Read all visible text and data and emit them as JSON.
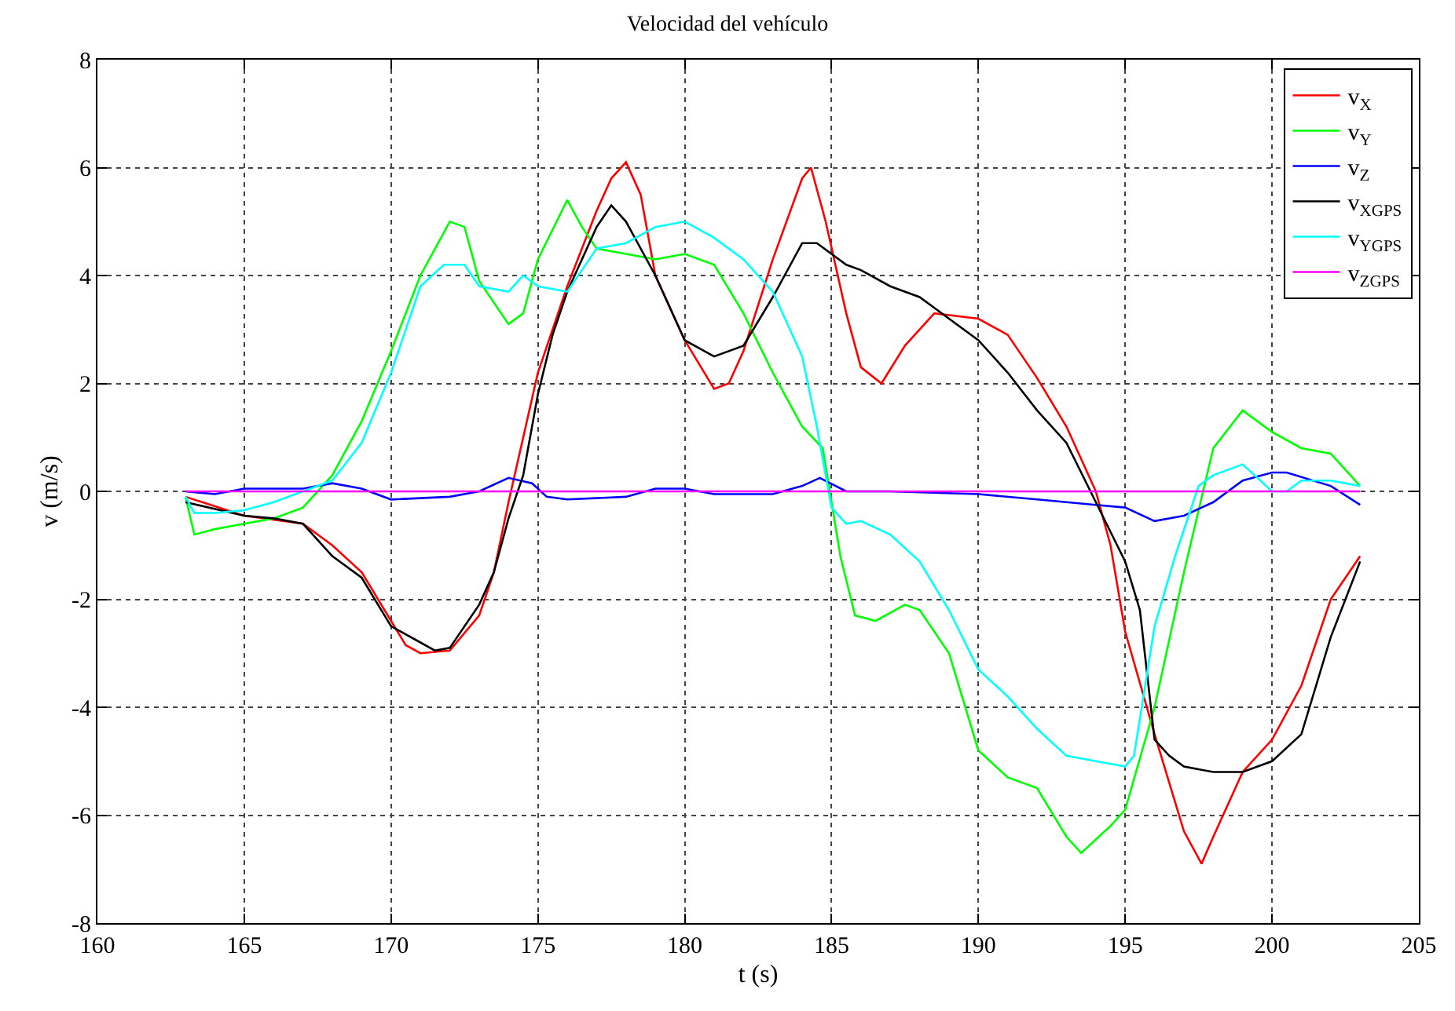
{
  "chart_data": {
    "type": "line",
    "title": "Velocidad del vehículo",
    "xlabel": "t (s)",
    "ylabel": "v (m/s)",
    "xlim": [
      160,
      205
    ],
    "xticks": [
      160,
      165,
      170,
      175,
      180,
      185,
      190,
      195,
      200,
      205
    ],
    "ylim": [
      -8,
      8
    ],
    "yticks": [
      -8,
      -6,
      -4,
      -2,
      0,
      2,
      4,
      6,
      8
    ],
    "grid": true,
    "legend": "top right",
    "line_style": "solid",
    "marker": "none",
    "series": [
      {
        "name": "v$_{X}$",
        "color": "#ff0000",
        "x": [
          163,
          165,
          167,
          168,
          169,
          170,
          170.5,
          171,
          172,
          173,
          173.5,
          174,
          174.5,
          175,
          176,
          177,
          177.5,
          178,
          178.5,
          179,
          180,
          181,
          181.5,
          182,
          183,
          184,
          184.3,
          184.8,
          185.5,
          186,
          186.7,
          187.5,
          188.5,
          190,
          191,
          192,
          193,
          194,
          194.5,
          195,
          196,
          197,
          197.6,
          198,
          199,
          200,
          201,
          202,
          203
        ],
        "values": [
          -0.1,
          -0.45,
          -0.6,
          -1.0,
          -1.5,
          -2.4,
          -2.85,
          -3.0,
          -2.95,
          -2.3,
          -1.5,
          -0.2,
          1.0,
          2.2,
          3.8,
          5.2,
          5.8,
          6.1,
          5.5,
          4.0,
          2.8,
          1.9,
          2.0,
          2.6,
          4.3,
          5.8,
          6.0,
          5.0,
          3.3,
          2.3,
          2.0,
          2.7,
          3.3,
          3.2,
          2.9,
          2.1,
          1.2,
          0.0,
          -1.0,
          -2.6,
          -4.5,
          -6.3,
          -6.9,
          -6.4,
          -5.2,
          -4.6,
          -3.6,
          -2.0,
          -1.2
        ]
      },
      {
        "name": "v$_{Y}$",
        "color": "#00ff00",
        "x": [
          163,
          163.3,
          164,
          165,
          166,
          167,
          168,
          169,
          170,
          171,
          172,
          172.5,
          173,
          174,
          174.5,
          175,
          176,
          176.5,
          177,
          178,
          179,
          180,
          181,
          182,
          183,
          184,
          184.7,
          185,
          185.3,
          185.8,
          186.5,
          187.5,
          188,
          189,
          190,
          191,
          192,
          193,
          193.5,
          194.5,
          195,
          196,
          197,
          198,
          199,
          200,
          201,
          202,
          203
        ],
        "values": [
          -0.1,
          -0.8,
          -0.7,
          -0.6,
          -0.5,
          -0.3,
          0.3,
          1.3,
          2.6,
          4.0,
          5.0,
          4.9,
          3.9,
          3.1,
          3.3,
          4.3,
          5.4,
          4.9,
          4.5,
          4.4,
          4.3,
          4.4,
          4.2,
          3.3,
          2.2,
          1.2,
          0.8,
          -0.2,
          -1.2,
          -2.3,
          -2.4,
          -2.1,
          -2.2,
          -3.0,
          -4.8,
          -5.3,
          -5.5,
          -6.4,
          -6.7,
          -6.2,
          -5.9,
          -4.0,
          -1.5,
          0.8,
          1.5,
          1.1,
          0.8,
          0.7,
          0.1
        ]
      },
      {
        "name": "v$_{Z}$",
        "color": "#0000ff",
        "x": [
          163,
          164,
          165,
          167,
          168,
          169,
          170,
          172,
          173,
          174,
          174.8,
          175.3,
          176,
          178,
          179,
          180,
          181,
          183,
          184,
          184.6,
          185.5,
          187,
          190,
          192,
          193,
          194,
          195,
          196,
          197,
          198,
          199,
          200,
          200.5,
          202,
          203
        ],
        "values": [
          0,
          -0.05,
          0.05,
          0.05,
          0.15,
          0.05,
          -0.15,
          -0.1,
          0.0,
          0.25,
          0.15,
          -0.1,
          -0.15,
          -0.1,
          0.05,
          0.05,
          -0.05,
          -0.05,
          0.1,
          0.25,
          0.0,
          0.0,
          -0.05,
          -0.15,
          -0.2,
          -0.25,
          -0.3,
          -0.55,
          -0.45,
          -0.2,
          0.2,
          0.35,
          0.35,
          0.1,
          -0.25
        ]
      },
      {
        "name": "v$_{XGPS}$",
        "color": "#000000",
        "x": [
          163,
          165,
          166,
          167,
          168,
          169,
          170,
          171,
          171.5,
          172,
          173,
          173.5,
          174,
          174.5,
          175,
          175.5,
          176,
          177,
          177.5,
          178,
          179,
          180,
          181,
          182,
          183,
          184,
          184.5,
          185.5,
          186,
          187,
          188,
          189,
          190,
          191,
          192,
          193,
          194,
          195,
          195.5,
          196,
          196.5,
          197,
          198,
          199,
          200,
          201,
          202,
          203
        ],
        "values": [
          -0.2,
          -0.45,
          -0.5,
          -0.6,
          -1.2,
          -1.6,
          -2.5,
          -2.8,
          -2.95,
          -2.9,
          -2.1,
          -1.5,
          -0.5,
          0.3,
          1.8,
          2.9,
          3.7,
          4.9,
          5.3,
          5.0,
          4.0,
          2.8,
          2.5,
          2.7,
          3.6,
          4.6,
          4.6,
          4.2,
          4.1,
          3.8,
          3.6,
          3.2,
          2.8,
          2.2,
          1.5,
          0.9,
          -0.2,
          -1.3,
          -2.2,
          -4.6,
          -4.9,
          -5.1,
          -5.2,
          -5.2,
          -5.0,
          -4.5,
          -2.7,
          -1.3
        ]
      },
      {
        "name": "v$_{YGPS}$",
        "color": "#00ffff",
        "x": [
          163,
          163.3,
          164,
          165,
          166,
          167,
          168,
          169,
          170,
          171,
          171.8,
          172.5,
          173,
          174,
          174.5,
          175,
          176,
          177,
          178,
          179,
          180,
          181,
          182,
          183,
          184,
          184.5,
          185,
          185.5,
          186,
          187,
          188,
          189,
          190,
          191,
          192,
          193,
          194,
          195,
          195.3,
          196,
          196.7,
          197.5,
          198,
          199,
          200,
          200.5,
          201,
          202,
          203
        ],
        "values": [
          -0.1,
          -0.4,
          -0.4,
          -0.35,
          -0.2,
          0.0,
          0.2,
          0.9,
          2.2,
          3.8,
          4.2,
          4.2,
          3.8,
          3.7,
          4.0,
          3.8,
          3.7,
          4.5,
          4.6,
          4.9,
          5.0,
          4.7,
          4.3,
          3.7,
          2.5,
          1.2,
          -0.3,
          -0.6,
          -0.55,
          -0.8,
          -1.3,
          -2.2,
          -3.3,
          -3.8,
          -4.4,
          -4.9,
          -5.0,
          -5.1,
          -4.9,
          -2.5,
          -1.2,
          0.1,
          0.3,
          0.5,
          0.0,
          0.0,
          0.2,
          0.2,
          0.1
        ]
      },
      {
        "name": "v$_{ZGPS}$",
        "color": "#ff00ff",
        "x": [
          163,
          203
        ],
        "values": [
          0,
          0
        ]
      }
    ]
  }
}
